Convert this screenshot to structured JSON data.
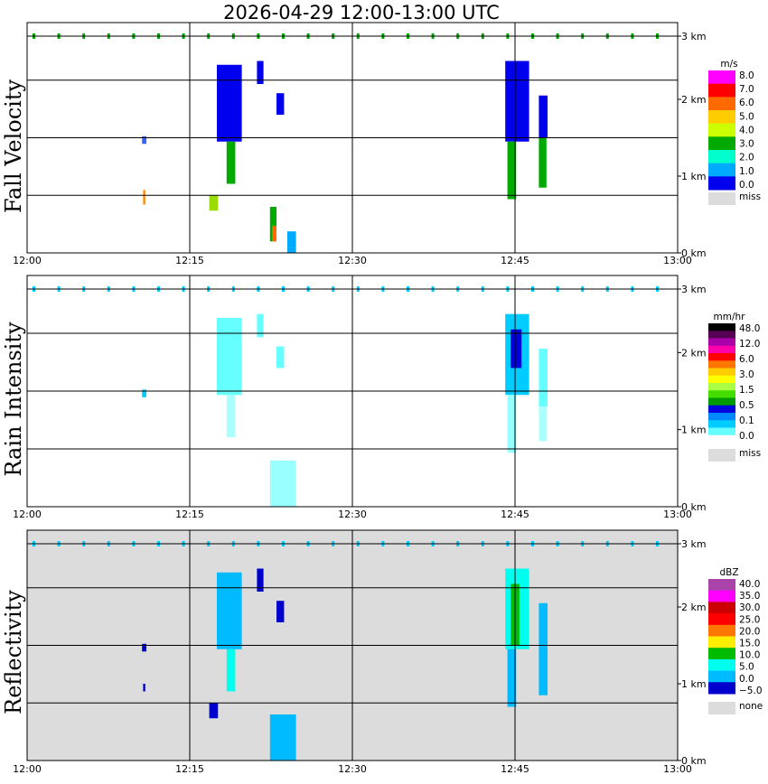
{
  "title": "2026-04-29  12:00-13:00 UTC",
  "chart_data": [
    {
      "type": "heatmap",
      "panel": "fall-velocity",
      "title": "Fall Velocity",
      "x_ticks": [
        "12:00",
        "12:15",
        "12:30",
        "12:45",
        "13:00"
      ],
      "xlim_minutes": [
        0,
        60
      ],
      "y_ticks": [
        "0 km",
        "1 km",
        "2 km",
        "3 km"
      ],
      "ylim_km": [
        0,
        3
      ],
      "legend_unit": "m/s",
      "legend_labels": [
        "8.0",
        "7.0",
        "6.0",
        "5.0",
        "4.0",
        "3.0",
        "2.0",
        "1.0",
        "0.0"
      ],
      "legend_colors": [
        "#ff00ff",
        "#ff0000",
        "#ff6a00",
        "#ffcc00",
        "#ccff00",
        "#00aa00",
        "#00ffcc",
        "#00aaff",
        "#0000ee"
      ],
      "missing_label": "miss",
      "missing_color": "#dcdcdc",
      "background": "#ffffff",
      "echoes": [
        {
          "t0": 10.6,
          "t1": 11.0,
          "h0": 1.42,
          "h1": 1.52,
          "c": "#3366ff"
        },
        {
          "t0": 10.7,
          "t1": 10.9,
          "h0": 0.63,
          "h1": 0.82,
          "c": "#ff8800"
        },
        {
          "t0": 17.5,
          "t1": 19.8,
          "h0": 1.45,
          "h1": 2.45,
          "c": "#0000ee"
        },
        {
          "t0": 18.4,
          "t1": 19.2,
          "h0": 0.9,
          "h1": 1.45,
          "c": "#00aa00"
        },
        {
          "t0": 16.8,
          "t1": 17.6,
          "h0": 0.55,
          "h1": 0.75,
          "c": "#99dd00"
        },
        {
          "t0": 21.2,
          "t1": 21.8,
          "h0": 2.2,
          "h1": 2.5,
          "c": "#0000ee"
        },
        {
          "t0": 23.0,
          "t1": 23.7,
          "h0": 1.8,
          "h1": 2.08,
          "c": "#0000ee"
        },
        {
          "t0": 22.4,
          "t1": 23.0,
          "h0": 0.15,
          "h1": 0.6,
          "c": "#00aa00"
        },
        {
          "t0": 22.6,
          "t1": 23.0,
          "h0": 0.15,
          "h1": 0.35,
          "c": "#ff6a00"
        },
        {
          "t0": 24.0,
          "t1": 24.8,
          "h0": 0.0,
          "h1": 0.28,
          "c": "#00aaff"
        },
        {
          "t0": 44.1,
          "t1": 46.3,
          "h0": 1.45,
          "h1": 2.5,
          "c": "#0000ee"
        },
        {
          "t0": 44.3,
          "t1": 45.1,
          "h0": 0.7,
          "h1": 1.45,
          "c": "#00aa00"
        },
        {
          "t0": 47.2,
          "t1": 48.0,
          "h0": 1.5,
          "h1": 2.05,
          "c": "#0000ee"
        },
        {
          "t0": 47.2,
          "t1": 47.9,
          "h0": 0.85,
          "h1": 1.5,
          "c": "#00aa00"
        }
      ]
    },
    {
      "type": "heatmap",
      "panel": "rain-intensity",
      "title": "Rain Intensity",
      "x_ticks": [
        "12:00",
        "12:15",
        "12:30",
        "12:45",
        "13:00"
      ],
      "xlim_minutes": [
        0,
        60
      ],
      "y_ticks": [
        "0 km",
        "1 km",
        "2 km",
        "3 km"
      ],
      "ylim_km": [
        0,
        3
      ],
      "legend_unit": "mm/hr",
      "legend_labels": [
        "48.0",
        "12.0",
        "6.0",
        "3.0",
        "1.5",
        "0.5",
        "0.1",
        "0.0"
      ],
      "legend_colors": [
        "#000000",
        "#550055",
        "#aa00aa",
        "#ff00aa",
        "#ff0000",
        "#ff7700",
        "#ffcc00",
        "#ffff00",
        "#aaff44",
        "#44dd00",
        "#009900",
        "#0000dd",
        "#0088ff",
        "#00ccff",
        "#66ffff",
        "#ffffff"
      ],
      "missing_label": "miss",
      "missing_color": "#dcdcdc",
      "background": "#ffffff",
      "echoes": [
        {
          "t0": 10.6,
          "t1": 11.0,
          "h0": 1.42,
          "h1": 1.52,
          "c": "#00ccff"
        },
        {
          "t0": 17.5,
          "t1": 19.8,
          "h0": 1.45,
          "h1": 2.45,
          "c": "#66ffff"
        },
        {
          "t0": 18.4,
          "t1": 19.2,
          "h0": 0.9,
          "h1": 1.45,
          "c": "#aaffff"
        },
        {
          "t0": 21.2,
          "t1": 21.8,
          "h0": 2.2,
          "h1": 2.5,
          "c": "#66ffff"
        },
        {
          "t0": 23.0,
          "t1": 23.7,
          "h0": 1.8,
          "h1": 2.08,
          "c": "#66ffff"
        },
        {
          "t0": 22.4,
          "t1": 24.8,
          "h0": 0.0,
          "h1": 0.6,
          "c": "#99ffff"
        },
        {
          "t0": 44.1,
          "t1": 46.3,
          "h0": 1.45,
          "h1": 2.5,
          "c": "#00ccff"
        },
        {
          "t0": 44.6,
          "t1": 45.6,
          "h0": 1.8,
          "h1": 2.3,
          "c": "#0000dd"
        },
        {
          "t0": 44.3,
          "t1": 45.1,
          "h0": 0.7,
          "h1": 1.45,
          "c": "#99ffff"
        },
        {
          "t0": 47.2,
          "t1": 48.0,
          "h0": 1.3,
          "h1": 2.05,
          "c": "#66ffff"
        },
        {
          "t0": 47.2,
          "t1": 47.9,
          "h0": 0.85,
          "h1": 1.3,
          "c": "#aaffff"
        }
      ]
    },
    {
      "type": "heatmap",
      "panel": "reflectivity",
      "title": "Reflectivity",
      "x_ticks": [
        "12:00",
        "12:15",
        "12:30",
        "12:45",
        "13:00"
      ],
      "xlim_minutes": [
        0,
        60
      ],
      "y_ticks": [
        "0 km",
        "1 km",
        "2 km",
        "3 km"
      ],
      "ylim_km": [
        0,
        3
      ],
      "legend_unit": "dBZ",
      "legend_labels": [
        "40.0",
        "35.0",
        "30.0",
        "25.0",
        "20.0",
        "15.0",
        "10.0",
        "5.0",
        "0.0",
        "−5.0"
      ],
      "legend_colors": [
        "#aa44aa",
        "#ff00ff",
        "#cc0000",
        "#ff0000",
        "#ff7700",
        "#ffee00",
        "#00bb00",
        "#00ffee",
        "#00bbff",
        "#0000cc"
      ],
      "missing_label": "none",
      "missing_color": "#dcdcdc",
      "background": "#dcdcdc",
      "echoes": [
        {
          "t0": 10.6,
          "t1": 11.0,
          "h0": 1.42,
          "h1": 1.52,
          "c": "#0000cc"
        },
        {
          "t0": 10.7,
          "t1": 10.9,
          "h0": 0.9,
          "h1": 1.0,
          "c": "#0000cc"
        },
        {
          "t0": 17.5,
          "t1": 19.8,
          "h0": 1.45,
          "h1": 2.45,
          "c": "#00bbff"
        },
        {
          "t0": 18.4,
          "t1": 19.2,
          "h0": 0.9,
          "h1": 1.45,
          "c": "#00ffee"
        },
        {
          "t0": 16.8,
          "t1": 17.6,
          "h0": 0.55,
          "h1": 0.75,
          "c": "#0000cc"
        },
        {
          "t0": 21.2,
          "t1": 21.8,
          "h0": 2.2,
          "h1": 2.5,
          "c": "#0000cc"
        },
        {
          "t0": 23.0,
          "t1": 23.7,
          "h0": 1.8,
          "h1": 2.08,
          "c": "#0000cc"
        },
        {
          "t0": 22.4,
          "t1": 24.8,
          "h0": 0.0,
          "h1": 0.6,
          "c": "#00bbff"
        },
        {
          "t0": 44.1,
          "t1": 46.3,
          "h0": 1.45,
          "h1": 2.5,
          "c": "#00ffee"
        },
        {
          "t0": 44.6,
          "t1": 45.4,
          "h0": 1.5,
          "h1": 2.3,
          "c": "#00bb00"
        },
        {
          "t0": 44.3,
          "t1": 45.1,
          "h0": 0.7,
          "h1": 1.45,
          "c": "#00bbff"
        },
        {
          "t0": 47.2,
          "t1": 48.0,
          "h0": 0.85,
          "h1": 2.05,
          "c": "#00bbff"
        }
      ]
    }
  ]
}
